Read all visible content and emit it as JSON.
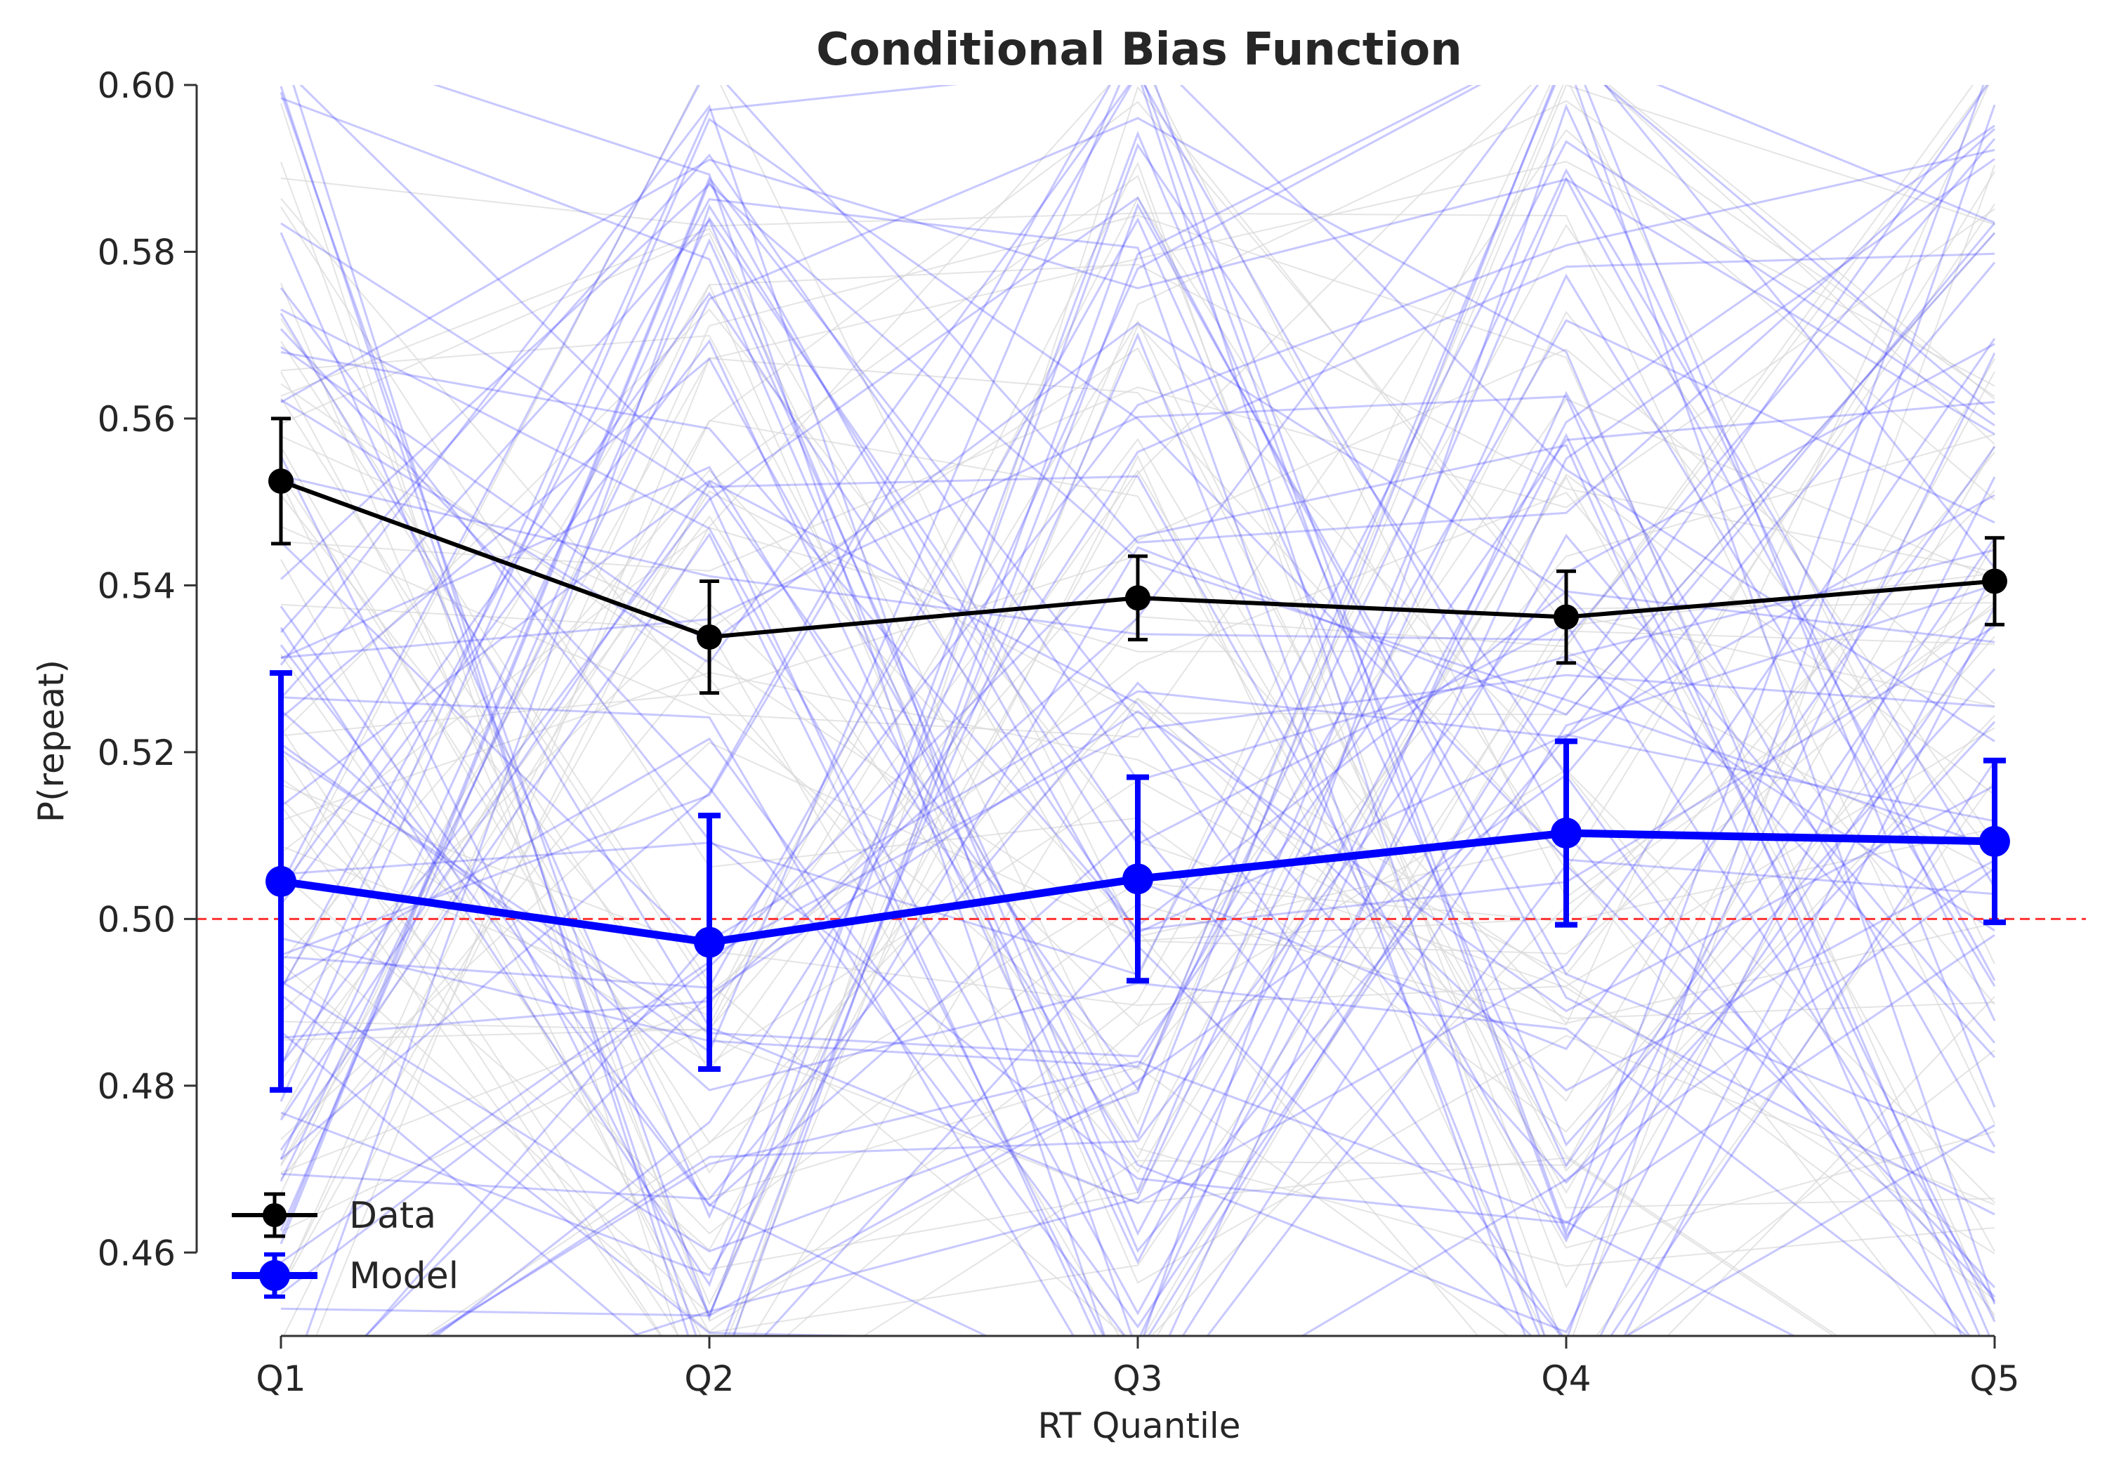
{
  "chart_data": {
    "type": "line",
    "title": "Conditional Bias Function",
    "xlabel": "RT Quantile",
    "ylabel": "P(repeat)",
    "categories": [
      "Q1",
      "Q2",
      "Q3",
      "Q4",
      "Q5"
    ],
    "ylim": [
      0.45,
      0.6
    ],
    "yticks": [
      "0.46",
      "0.48",
      "0.50",
      "0.52",
      "0.54",
      "0.56",
      "0.58",
      "0.60"
    ],
    "grid": false,
    "legend_position": "lower-left",
    "series": [
      {
        "name": "Data",
        "color": "#000000",
        "values": [
          0.5525,
          0.5338,
          0.5385,
          0.5362,
          0.5405
        ],
        "errors": [
          0.0075,
          0.0067,
          0.005,
          0.0055,
          0.0052
        ]
      },
      {
        "name": "Model",
        "color": "#0000ff",
        "values": [
          0.5045,
          0.4972,
          0.5048,
          0.5103,
          0.5093
        ],
        "errors": [
          0.025,
          0.0152,
          0.0122,
          0.011,
          0.0097
        ]
      }
    ],
    "reference_line": {
      "y": 0.5,
      "color": "#ff3333",
      "style": "dashed"
    },
    "background_traces": {
      "description_color_model": "#6a6aff",
      "description_color_data": "#cfcfcf"
    }
  }
}
